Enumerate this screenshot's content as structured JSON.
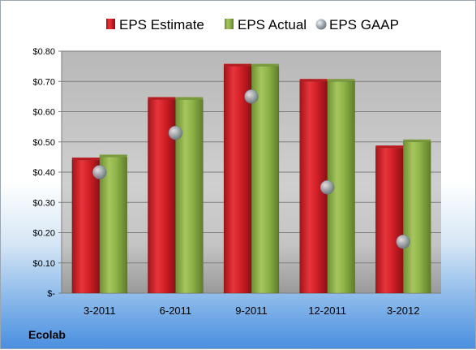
{
  "chart_data": {
    "type": "bar",
    "categories": [
      "3-2011",
      "6-2011",
      "9-2011",
      "12-2011",
      "3-2012"
    ],
    "series": [
      {
        "name": "EPS Estimate",
        "kind": "bar",
        "color": "#d42027",
        "values": [
          0.44,
          0.64,
          0.75,
          0.7,
          0.48
        ]
      },
      {
        "name": "EPS Actual",
        "kind": "bar",
        "color": "#8fb449",
        "values": [
          0.45,
          0.64,
          0.75,
          0.7,
          0.5
        ]
      },
      {
        "name": "EPS GAAP",
        "kind": "marker",
        "color": "#8f9aa6",
        "values": [
          0.4,
          0.53,
          0.65,
          0.35,
          0.17
        ]
      }
    ],
    "y_ticks": [
      {
        "value": 0.8,
        "label": "$0.80"
      },
      {
        "value": 0.7,
        "label": "$0.70"
      },
      {
        "value": 0.6,
        "label": "$0.60"
      },
      {
        "value": 0.5,
        "label": "$0.50"
      },
      {
        "value": 0.4,
        "label": "$0.40"
      },
      {
        "value": 0.3,
        "label": "$0.30"
      },
      {
        "value": 0.2,
        "label": "$0.20"
      },
      {
        "value": 0.1,
        "label": "$0.10"
      },
      {
        "value": 0.0,
        "label": "$-"
      }
    ],
    "ylim": [
      0,
      0.8
    ],
    "grid": true,
    "legend_position": "top",
    "footer": "Ecolab"
  }
}
